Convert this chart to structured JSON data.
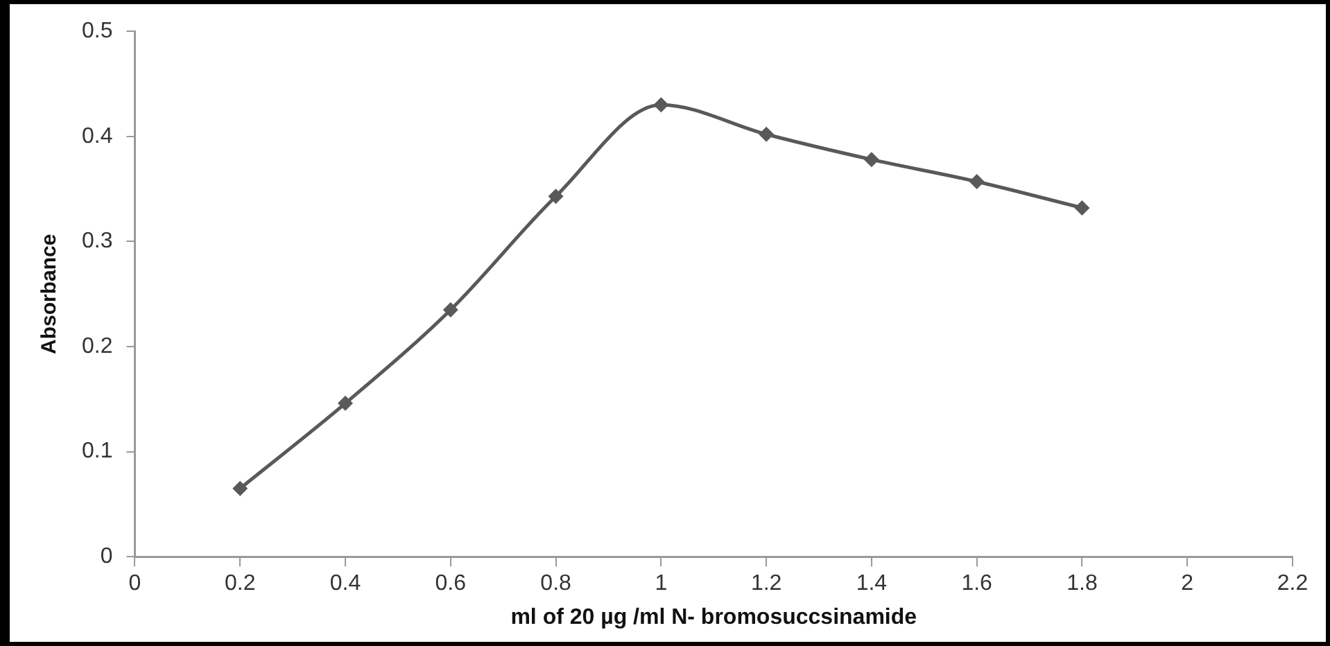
{
  "chart_data": {
    "type": "line",
    "xlabel": "ml of 20 µg /ml N- bromosuccsinamide",
    "ylabel": "Absorbance",
    "x": [
      0.2,
      0.4,
      0.6,
      0.8,
      1.0,
      1.2,
      1.4,
      1.6,
      1.8
    ],
    "series": [
      {
        "color": "#595959",
        "values": [
          0.065,
          0.146,
          0.235,
          0.343,
          0.43,
          0.402,
          0.378,
          0.357,
          0.332
        ]
      }
    ],
    "xlim": [
      0,
      2.2
    ],
    "xticks": [
      0,
      0.2,
      0.4,
      0.6,
      0.8,
      1,
      1.2,
      1.4,
      1.6,
      1.8,
      2,
      2.2
    ],
    "ylim": [
      0,
      0.5
    ],
    "yticks": [
      0,
      0.1,
      0.2,
      0.3,
      0.4,
      0.5
    ],
    "grid": false,
    "legend": false,
    "marker": "diamond",
    "line_style": "solid"
  }
}
